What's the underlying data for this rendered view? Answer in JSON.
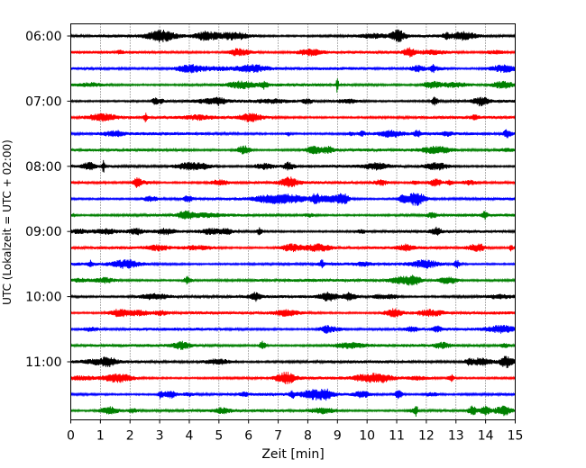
{
  "chart_data": {
    "type": "line",
    "title": "",
    "xlabel": "Zeit  [min]",
    "ylabel": "UTC (Lokalzeit = UTC + 02:00)",
    "xlim": [
      0,
      15
    ],
    "x_ticks": [
      "0",
      "1",
      "2",
      "3",
      "4",
      "5",
      "6",
      "7",
      "8",
      "9",
      "10",
      "11",
      "12",
      "13",
      "14",
      "15"
    ],
    "y_ticks": [
      "06:00",
      "07:00",
      "08:00",
      "09:00",
      "10:00",
      "11:00"
    ],
    "grid": "vertical dotted at each minute",
    "trace_interval_minutes": 15,
    "trace_count": 24,
    "trace_colors": [
      "#000000",
      "#ff0000",
      "#0000ff",
      "#008000"
    ],
    "start_time": "06:00",
    "end_time": "11:45"
  }
}
